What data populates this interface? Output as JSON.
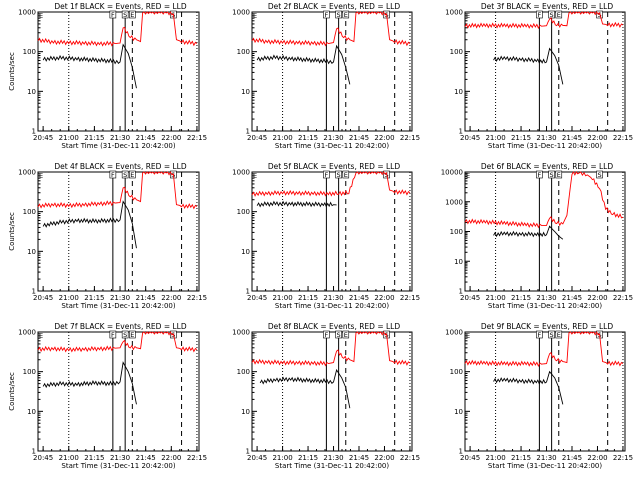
{
  "chart_data": [
    {
      "type": "line",
      "title": "Det 1f BLACK = Events, RED = LLD",
      "xlabel": "Start Time (31-Dec-11 20:42:00)",
      "ylabel": "Counts/sec",
      "x_ticks": [
        "20:45",
        "21:00",
        "21:15",
        "21:30",
        "21:45",
        "22:00",
        "22:15"
      ],
      "y_ticks": [
        "1",
        "10",
        "100",
        "1000"
      ],
      "ylim": [
        1,
        1000
      ],
      "log_y": true,
      "flags": [
        "F",
        "S",
        "E",
        "S"
      ],
      "series": [
        {
          "name": "Events",
          "color": "#000000",
          "x": [
            20.75,
            20.93,
            21.08,
            21.25,
            21.42,
            21.5,
            21.53,
            21.58,
            21.62,
            21.66
          ],
          "y": [
            65,
            70,
            66,
            62,
            58,
            55,
            150,
            90,
            40,
            12
          ]
        },
        {
          "name": "LLD",
          "color": "#ff0000",
          "x": [
            20.7,
            20.85,
            21.0,
            21.15,
            21.3,
            21.45,
            21.5,
            21.53,
            21.6,
            21.66,
            21.7,
            21.72,
            21.95,
            22.02,
            22.05,
            22.1,
            22.25
          ],
          "y": [
            200,
            175,
            170,
            165,
            160,
            160,
            165,
            420,
            240,
            200,
            180,
            1000,
            1000,
            900,
            200,
            180,
            160
          ]
        }
      ]
    },
    {
      "type": "line",
      "title": "Det 2f BLACK = Events, RED = LLD",
      "xlabel": "Start Time (31-Dec-11 20:42:00)",
      "ylabel": "",
      "x_ticks": [
        "20:45",
        "21:00",
        "21:15",
        "21:30",
        "21:45",
        "22:00",
        "22:15"
      ],
      "y_ticks": [
        "1",
        "10",
        "100",
        "1000"
      ],
      "ylim": [
        1,
        1000
      ],
      "log_y": true,
      "flags": [
        "F",
        "S",
        "E",
        "S"
      ],
      "series": [
        {
          "name": "Events",
          "color": "#000000",
          "x": [
            20.75,
            20.93,
            21.08,
            21.25,
            21.42,
            21.5,
            21.53,
            21.58,
            21.62,
            21.66
          ],
          "y": [
            65,
            72,
            67,
            62,
            58,
            55,
            140,
            85,
            40,
            15
          ]
        },
        {
          "name": "LLD",
          "color": "#ff0000",
          "x": [
            20.7,
            20.85,
            21.0,
            21.15,
            21.3,
            21.45,
            21.5,
            21.53,
            21.6,
            21.66,
            21.7,
            21.72,
            21.95,
            22.02,
            22.05,
            22.1,
            22.25
          ],
          "y": [
            200,
            180,
            175,
            170,
            165,
            160,
            170,
            400,
            240,
            200,
            180,
            1000,
            1000,
            900,
            200,
            180,
            160
          ]
        }
      ]
    },
    {
      "type": "line",
      "title": "Det 3f BLACK = Events, RED = LLD",
      "xlabel": "Start Time (31-Dec-11 20:42:00)",
      "ylabel": "",
      "x_ticks": [
        "20:45",
        "21:00",
        "21:15",
        "21:30",
        "21:45",
        "22:00",
        "22:15"
      ],
      "y_ticks": [
        "1",
        "10",
        "100",
        "1000"
      ],
      "ylim": [
        1,
        1000
      ],
      "log_y": true,
      "flags": [
        "F",
        "S",
        "E",
        "S"
      ],
      "series": [
        {
          "name": "Events",
          "color": "#000000",
          "x": [
            20.98,
            21.1,
            21.25,
            21.4,
            21.5,
            21.53,
            21.58,
            21.62,
            21.66
          ],
          "y": [
            65,
            68,
            64,
            60,
            55,
            120,
            80,
            45,
            15
          ]
        },
        {
          "name": "LLD",
          "color": "#ff0000",
          "x": [
            20.7,
            20.9,
            21.1,
            21.3,
            21.45,
            21.5,
            21.53,
            21.6,
            21.66,
            21.7,
            21.72,
            21.95,
            22.02,
            22.05,
            22.1,
            22.25
          ],
          "y": [
            450,
            460,
            455,
            450,
            440,
            450,
            700,
            480,
            460,
            450,
            1000,
            1000,
            950,
            500,
            480,
            470
          ]
        }
      ]
    },
    {
      "type": "line",
      "title": "Det 4f BLACK = Events, RED = LLD",
      "xlabel": "Start Time (31-Dec-11 20:42:00)",
      "ylabel": "Counts/sec",
      "x_ticks": [
        "20:45",
        "21:00",
        "21:15",
        "21:30",
        "21:45",
        "22:00",
        "22:15"
      ],
      "y_ticks": [
        "1",
        "10",
        "100",
        "1000"
      ],
      "ylim": [
        1,
        1000
      ],
      "log_y": true,
      "flags": [
        "F",
        "S",
        "E",
        "S"
      ],
      "series": [
        {
          "name": "Events",
          "color": "#000000",
          "x": [
            20.75,
            20.93,
            21.08,
            21.25,
            21.42,
            21.5,
            21.53,
            21.58,
            21.62,
            21.66
          ],
          "y": [
            45,
            55,
            60,
            58,
            60,
            62,
            180,
            110,
            50,
            12
          ]
        },
        {
          "name": "LLD",
          "color": "#ff0000",
          "x": [
            20.7,
            20.85,
            21.0,
            21.15,
            21.3,
            21.45,
            21.5,
            21.53,
            21.6,
            21.66,
            21.7,
            21.72,
            21.95,
            22.02,
            22.05,
            22.1,
            22.25
          ],
          "y": [
            140,
            150,
            145,
            150,
            160,
            165,
            170,
            420,
            250,
            200,
            180,
            1000,
            1000,
            900,
            150,
            140,
            135
          ]
        }
      ]
    },
    {
      "type": "line",
      "title": "Det 5f BLACK = Events, RED = LLD",
      "xlabel": "Start Time (31-Dec-11 20:42:00)",
      "ylabel": "",
      "x_ticks": [
        "20:45",
        "21:00",
        "21:15",
        "21:30",
        "21:45",
        "22:00",
        "22:15"
      ],
      "y_ticks": [
        "1",
        "10",
        "100",
        "1000"
      ],
      "ylim": [
        1,
        1000
      ],
      "log_y": true,
      "flags": [
        "F",
        "S",
        "E",
        "S"
      ],
      "series": [
        {
          "name": "Events",
          "color": "#000000",
          "x": [
            20.75,
            20.93,
            21.08,
            21.25,
            21.4,
            21.5,
            21.53
          ],
          "y": [
            150,
            160,
            158,
            155,
            152,
            150,
            148
          ]
        },
        {
          "name": "LLD",
          "color": "#ff0000",
          "x": [
            20.7,
            20.85,
            21.0,
            21.15,
            21.3,
            21.45,
            21.55,
            21.65,
            21.72,
            21.95,
            22.02,
            22.05,
            22.1,
            22.25
          ],
          "y": [
            280,
            290,
            300,
            295,
            290,
            285,
            290,
            300,
            1000,
            1000,
            950,
            350,
            320,
            300
          ]
        }
      ]
    },
    {
      "type": "line",
      "title": "Det 6f BLACK = Events, RED = LLD",
      "xlabel": "Start Time (31-Dec-11 20:42:00)",
      "ylabel": "",
      "x_ticks": [
        "20:45",
        "21:00",
        "21:15",
        "21:30",
        "21:45",
        "22:00",
        "22:15"
      ],
      "y_ticks": [
        "1",
        "10",
        "100",
        "1000",
        "10000"
      ],
      "ylim": [
        1,
        10000
      ],
      "log_y": true,
      "flags": [
        "F",
        "S",
        "E",
        "S"
      ],
      "series": [
        {
          "name": "Events",
          "color": "#000000",
          "x": [
            20.98,
            21.1,
            21.25,
            21.4,
            21.5,
            21.53,
            21.58,
            21.62,
            21.66
          ],
          "y": [
            80,
            85,
            82,
            80,
            78,
            150,
            100,
            70,
            55
          ]
        },
        {
          "name": "LLD",
          "color": "#ff0000",
          "x": [
            20.7,
            20.9,
            21.1,
            21.3,
            21.45,
            21.5,
            21.53,
            21.6,
            21.66,
            21.7,
            21.75,
            21.82,
            21.9,
            21.95,
            22.02,
            22.08,
            22.15,
            22.25
          ],
          "y": [
            220,
            210,
            190,
            170,
            160,
            160,
            300,
            200,
            180,
            350,
            9000,
            10000,
            8000,
            6000,
            3000,
            600,
            400,
            300
          ]
        }
      ]
    },
    {
      "type": "line",
      "title": "Det 7f BLACK = Events, RED = LLD",
      "xlabel": "Start Time (31-Dec-11 20:42:00)",
      "ylabel": "Counts/sec",
      "x_ticks": [
        "20:45",
        "21:00",
        "21:15",
        "21:30",
        "21:45",
        "22:00",
        "22:15"
      ],
      "y_ticks": [
        "1",
        "10",
        "100",
        "1000"
      ],
      "ylim": [
        1,
        1000
      ],
      "log_y": true,
      "flags": [
        "F",
        "S",
        "E",
        "S"
      ],
      "series": [
        {
          "name": "Events",
          "color": "#000000",
          "x": [
            20.75,
            20.93,
            21.08,
            21.25,
            21.42,
            21.5,
            21.53,
            21.58,
            21.62,
            21.66
          ],
          "y": [
            45,
            50,
            48,
            52,
            50,
            55,
            170,
            100,
            50,
            15
          ]
        },
        {
          "name": "LLD",
          "color": "#ff0000",
          "x": [
            20.7,
            20.85,
            21.0,
            21.15,
            21.3,
            21.45,
            21.5,
            21.53,
            21.6,
            21.66,
            21.7,
            21.72,
            21.95,
            22.02,
            22.05,
            22.1,
            22.25
          ],
          "y": [
            370,
            380,
            360,
            370,
            380,
            390,
            400,
            600,
            420,
            400,
            380,
            1000,
            1000,
            900,
            400,
            380,
            360
          ]
        }
      ]
    },
    {
      "type": "line",
      "title": "Det 8f BLACK = Events, RED = LLD",
      "xlabel": "Start Time (31-Dec-11 20:42:00)",
      "ylabel": "",
      "x_ticks": [
        "20:45",
        "21:00",
        "21:15",
        "21:30",
        "21:45",
        "22:00",
        "22:15"
      ],
      "y_ticks": [
        "1",
        "10",
        "100",
        "1000"
      ],
      "ylim": [
        1,
        1000
      ],
      "log_y": true,
      "flags": [
        "F",
        "S",
        "E",
        "S"
      ],
      "series": [
        {
          "name": "Events",
          "color": "#000000",
          "x": [
            20.78,
            20.93,
            21.08,
            21.25,
            21.42,
            21.5,
            21.53,
            21.58,
            21.62,
            21.66
          ],
          "y": [
            55,
            62,
            65,
            60,
            58,
            55,
            110,
            70,
            40,
            12
          ]
        },
        {
          "name": "LLD",
          "color": "#ff0000",
          "x": [
            20.7,
            20.85,
            21.0,
            21.15,
            21.3,
            21.45,
            21.5,
            21.53,
            21.6,
            21.66,
            21.7,
            21.72,
            21.95,
            22.02,
            22.05,
            22.1,
            22.25
          ],
          "y": [
            180,
            175,
            170,
            168,
            165,
            160,
            170,
            350,
            230,
            200,
            180,
            1000,
            1000,
            900,
            190,
            175,
            165
          ]
        }
      ]
    },
    {
      "type": "line",
      "title": "Det 9f BLACK = Events, RED = LLD",
      "xlabel": "Start Time (31-Dec-11 20:42:00)",
      "ylabel": "",
      "x_ticks": [
        "20:45",
        "21:00",
        "21:15",
        "21:30",
        "21:45",
        "22:00",
        "22:15"
      ],
      "y_ticks": [
        "1",
        "10",
        "100",
        "1000"
      ],
      "ylim": [
        1,
        1000
      ],
      "log_y": true,
      "flags": [
        "F",
        "S",
        "E",
        "S"
      ],
      "series": [
        {
          "name": "Events",
          "color": "#000000",
          "x": [
            20.98,
            21.1,
            21.25,
            21.4,
            21.5,
            21.53,
            21.58,
            21.62,
            21.66
          ],
          "y": [
            60,
            62,
            58,
            56,
            55,
            100,
            70,
            40,
            15
          ]
        },
        {
          "name": "LLD",
          "color": "#ff0000",
          "x": [
            20.7,
            20.9,
            21.1,
            21.3,
            21.45,
            21.5,
            21.53,
            21.6,
            21.66,
            21.7,
            21.72,
            21.95,
            22.02,
            22.05,
            22.1,
            22.25
          ],
          "y": [
            170,
            165,
            160,
            160,
            155,
            160,
            300,
            200,
            180,
            170,
            1000,
            1000,
            900,
            180,
            165,
            160
          ]
        }
      ]
    }
  ]
}
